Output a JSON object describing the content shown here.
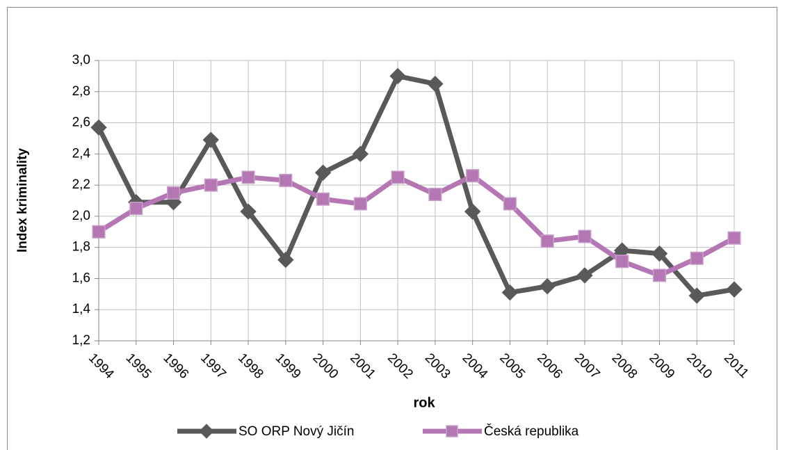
{
  "chart_data": {
    "type": "line",
    "x_label": "rok",
    "y_label": "Index kriminality",
    "categories": [
      "1994",
      "1995",
      "1996",
      "1997",
      "1998",
      "1999",
      "2000",
      "2001",
      "2002",
      "2003",
      "2004",
      "2005",
      "2006",
      "2007",
      "2008",
      "2009",
      "2010",
      "2011"
    ],
    "series": [
      {
        "name": "SO ORP Nový Jičín",
        "color": "#595959",
        "marker": "diamond",
        "values": [
          2.57,
          2.09,
          2.09,
          2.49,
          2.03,
          1.72,
          2.28,
          2.4,
          2.9,
          2.85,
          2.03,
          1.51,
          1.55,
          1.62,
          1.78,
          1.76,
          1.49,
          1.53
        ]
      },
      {
        "name": "Česká republika",
        "color": "#b477b4",
        "marker": "square",
        "values": [
          1.9,
          2.05,
          2.15,
          2.2,
          2.25,
          2.23,
          2.11,
          2.08,
          2.25,
          2.14,
          2.26,
          2.08,
          1.84,
          1.87,
          1.71,
          1.62,
          1.73,
          1.86
        ]
      }
    ],
    "ylim": [
      1.2,
      3.0
    ],
    "yticks": [
      {
        "value": 1.2,
        "label": "1,2"
      },
      {
        "value": 1.4,
        "label": "1,4"
      },
      {
        "value": 1.6,
        "label": "1,6"
      },
      {
        "value": 1.8,
        "label": "1,8"
      },
      {
        "value": 2.0,
        "label": "2,0"
      },
      {
        "value": 2.2,
        "label": "2,2"
      },
      {
        "value": 2.4,
        "label": "2,4"
      },
      {
        "value": 2.6,
        "label": "2,6"
      },
      {
        "value": 2.8,
        "label": "2,8"
      },
      {
        "value": 3.0,
        "label": "3,0"
      }
    ],
    "grid": true,
    "legend": "bottom"
  }
}
